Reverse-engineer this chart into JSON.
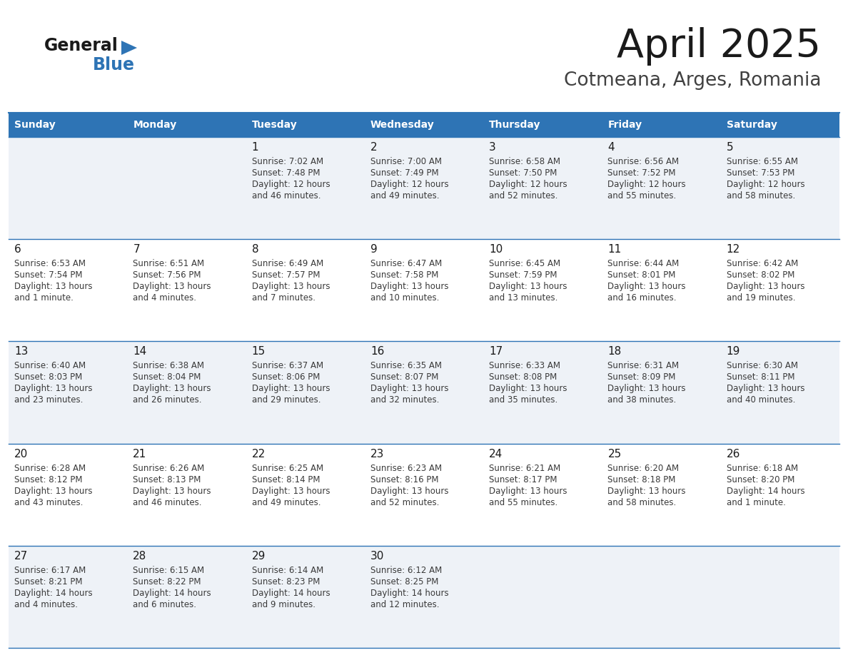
{
  "title": "April 2025",
  "subtitle": "Cotmeana, Arges, Romania",
  "header_color": "#2e74b5",
  "header_text_color": "#ffffff",
  "day_headers": [
    "Sunday",
    "Monday",
    "Tuesday",
    "Wednesday",
    "Thursday",
    "Friday",
    "Saturday"
  ],
  "title_color": "#1a1a1a",
  "subtitle_color": "#404040",
  "line_color": "#2e74b5",
  "day_number_color": "#1a1a1a",
  "info_color": "#3a3a3a",
  "logo_general_color": "#1a1a1a",
  "logo_blue_color": "#2e74b5",
  "bg_even": "#eef2f7",
  "bg_odd": "#ffffff",
  "weeks": [
    [
      {
        "day": "",
        "sunrise": "",
        "sunset": "",
        "daylight": ""
      },
      {
        "day": "",
        "sunrise": "",
        "sunset": "",
        "daylight": ""
      },
      {
        "day": "1",
        "sunrise": "Sunrise: 7:02 AM",
        "sunset": "Sunset: 7:48 PM",
        "daylight": "Daylight: 12 hours\nand 46 minutes."
      },
      {
        "day": "2",
        "sunrise": "Sunrise: 7:00 AM",
        "sunset": "Sunset: 7:49 PM",
        "daylight": "Daylight: 12 hours\nand 49 minutes."
      },
      {
        "day": "3",
        "sunrise": "Sunrise: 6:58 AM",
        "sunset": "Sunset: 7:50 PM",
        "daylight": "Daylight: 12 hours\nand 52 minutes."
      },
      {
        "day": "4",
        "sunrise": "Sunrise: 6:56 AM",
        "sunset": "Sunset: 7:52 PM",
        "daylight": "Daylight: 12 hours\nand 55 minutes."
      },
      {
        "day": "5",
        "sunrise": "Sunrise: 6:55 AM",
        "sunset": "Sunset: 7:53 PM",
        "daylight": "Daylight: 12 hours\nand 58 minutes."
      }
    ],
    [
      {
        "day": "6",
        "sunrise": "Sunrise: 6:53 AM",
        "sunset": "Sunset: 7:54 PM",
        "daylight": "Daylight: 13 hours\nand 1 minute."
      },
      {
        "day": "7",
        "sunrise": "Sunrise: 6:51 AM",
        "sunset": "Sunset: 7:56 PM",
        "daylight": "Daylight: 13 hours\nand 4 minutes."
      },
      {
        "day": "8",
        "sunrise": "Sunrise: 6:49 AM",
        "sunset": "Sunset: 7:57 PM",
        "daylight": "Daylight: 13 hours\nand 7 minutes."
      },
      {
        "day": "9",
        "sunrise": "Sunrise: 6:47 AM",
        "sunset": "Sunset: 7:58 PM",
        "daylight": "Daylight: 13 hours\nand 10 minutes."
      },
      {
        "day": "10",
        "sunrise": "Sunrise: 6:45 AM",
        "sunset": "Sunset: 7:59 PM",
        "daylight": "Daylight: 13 hours\nand 13 minutes."
      },
      {
        "day": "11",
        "sunrise": "Sunrise: 6:44 AM",
        "sunset": "Sunset: 8:01 PM",
        "daylight": "Daylight: 13 hours\nand 16 minutes."
      },
      {
        "day": "12",
        "sunrise": "Sunrise: 6:42 AM",
        "sunset": "Sunset: 8:02 PM",
        "daylight": "Daylight: 13 hours\nand 19 minutes."
      }
    ],
    [
      {
        "day": "13",
        "sunrise": "Sunrise: 6:40 AM",
        "sunset": "Sunset: 8:03 PM",
        "daylight": "Daylight: 13 hours\nand 23 minutes."
      },
      {
        "day": "14",
        "sunrise": "Sunrise: 6:38 AM",
        "sunset": "Sunset: 8:04 PM",
        "daylight": "Daylight: 13 hours\nand 26 minutes."
      },
      {
        "day": "15",
        "sunrise": "Sunrise: 6:37 AM",
        "sunset": "Sunset: 8:06 PM",
        "daylight": "Daylight: 13 hours\nand 29 minutes."
      },
      {
        "day": "16",
        "sunrise": "Sunrise: 6:35 AM",
        "sunset": "Sunset: 8:07 PM",
        "daylight": "Daylight: 13 hours\nand 32 minutes."
      },
      {
        "day": "17",
        "sunrise": "Sunrise: 6:33 AM",
        "sunset": "Sunset: 8:08 PM",
        "daylight": "Daylight: 13 hours\nand 35 minutes."
      },
      {
        "day": "18",
        "sunrise": "Sunrise: 6:31 AM",
        "sunset": "Sunset: 8:09 PM",
        "daylight": "Daylight: 13 hours\nand 38 minutes."
      },
      {
        "day": "19",
        "sunrise": "Sunrise: 6:30 AM",
        "sunset": "Sunset: 8:11 PM",
        "daylight": "Daylight: 13 hours\nand 40 minutes."
      }
    ],
    [
      {
        "day": "20",
        "sunrise": "Sunrise: 6:28 AM",
        "sunset": "Sunset: 8:12 PM",
        "daylight": "Daylight: 13 hours\nand 43 minutes."
      },
      {
        "day": "21",
        "sunrise": "Sunrise: 6:26 AM",
        "sunset": "Sunset: 8:13 PM",
        "daylight": "Daylight: 13 hours\nand 46 minutes."
      },
      {
        "day": "22",
        "sunrise": "Sunrise: 6:25 AM",
        "sunset": "Sunset: 8:14 PM",
        "daylight": "Daylight: 13 hours\nand 49 minutes."
      },
      {
        "day": "23",
        "sunrise": "Sunrise: 6:23 AM",
        "sunset": "Sunset: 8:16 PM",
        "daylight": "Daylight: 13 hours\nand 52 minutes."
      },
      {
        "day": "24",
        "sunrise": "Sunrise: 6:21 AM",
        "sunset": "Sunset: 8:17 PM",
        "daylight": "Daylight: 13 hours\nand 55 minutes."
      },
      {
        "day": "25",
        "sunrise": "Sunrise: 6:20 AM",
        "sunset": "Sunset: 8:18 PM",
        "daylight": "Daylight: 13 hours\nand 58 minutes."
      },
      {
        "day": "26",
        "sunrise": "Sunrise: 6:18 AM",
        "sunset": "Sunset: 8:20 PM",
        "daylight": "Daylight: 14 hours\nand 1 minute."
      }
    ],
    [
      {
        "day": "27",
        "sunrise": "Sunrise: 6:17 AM",
        "sunset": "Sunset: 8:21 PM",
        "daylight": "Daylight: 14 hours\nand 4 minutes."
      },
      {
        "day": "28",
        "sunrise": "Sunrise: 6:15 AM",
        "sunset": "Sunset: 8:22 PM",
        "daylight": "Daylight: 14 hours\nand 6 minutes."
      },
      {
        "day": "29",
        "sunrise": "Sunrise: 6:14 AM",
        "sunset": "Sunset: 8:23 PM",
        "daylight": "Daylight: 14 hours\nand 9 minutes."
      },
      {
        "day": "30",
        "sunrise": "Sunrise: 6:12 AM",
        "sunset": "Sunset: 8:25 PM",
        "daylight": "Daylight: 14 hours\nand 12 minutes."
      },
      {
        "day": "",
        "sunrise": "",
        "sunset": "",
        "daylight": ""
      },
      {
        "day": "",
        "sunrise": "",
        "sunset": "",
        "daylight": ""
      },
      {
        "day": "",
        "sunrise": "",
        "sunset": "",
        "daylight": ""
      }
    ]
  ]
}
